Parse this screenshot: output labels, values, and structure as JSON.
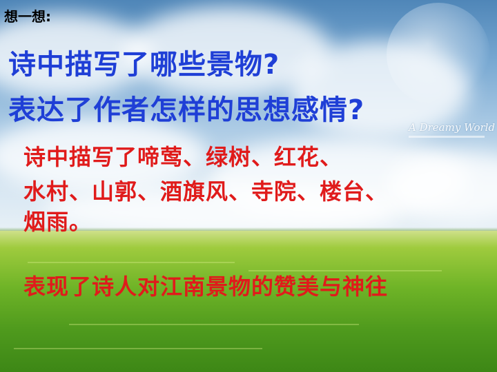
{
  "heading": "想一想:",
  "questions": [
    "诗中描写了哪些景物?",
    "表达了作者怎样的思想感情?"
  ],
  "answer_lines": [
    "诗中描写了啼莺、绿树、红花、",
    "水村、山郭、酒旗风、寺院、楼台、",
    "烟雨。"
  ],
  "conclusion": "表现了诗人对江南景物的赞美与神往",
  "background": {
    "watermark": "A Dreamy World",
    "sky_color": "#7aa9d2",
    "field_color": "#6fb427"
  },
  "colors": {
    "question": "#1f3fd6",
    "answer": "#e01b1b",
    "heading": "#000000"
  }
}
